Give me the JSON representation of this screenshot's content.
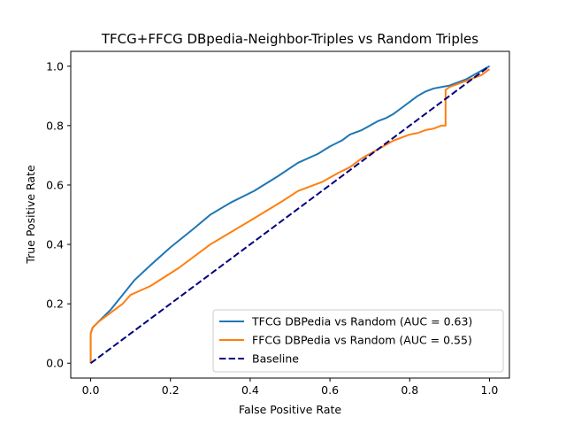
{
  "chart_data": {
    "type": "line",
    "title": "TFCG+FFCG DBpedia-Neighbor-Triples vs Random Triples",
    "xlabel": "False Positive Rate",
    "ylabel": "True Positive Rate",
    "xlim": [
      -0.05,
      1.05
    ],
    "ylim": [
      -0.05,
      1.05
    ],
    "xticks": [
      "0.0",
      "0.2",
      "0.4",
      "0.6",
      "0.8",
      "1.0"
    ],
    "yticks": [
      "0.0",
      "0.2",
      "0.4",
      "0.6",
      "0.8",
      "1.0"
    ],
    "grid": false,
    "legend_position": "lower-right",
    "series": [
      {
        "name": "TFCG DBPedia vs Random (AUC = 0.63)",
        "color": "#1f77b4",
        "style": "solid",
        "x": [
          0,
          0,
          0.005,
          0.02,
          0.05,
          0.08,
          0.11,
          0.15,
          0.2,
          0.26,
          0.3,
          0.35,
          0.41,
          0.47,
          0.52,
          0.57,
          0.6,
          0.63,
          0.65,
          0.68,
          0.7,
          0.72,
          0.74,
          0.76,
          0.78,
          0.8,
          0.82,
          0.84,
          0.86,
          0.88,
          0.9,
          0.92,
          0.94,
          0.96,
          0.98,
          1.0
        ],
        "y": [
          0,
          0.1,
          0.12,
          0.14,
          0.18,
          0.23,
          0.28,
          0.33,
          0.39,
          0.455,
          0.5,
          0.54,
          0.58,
          0.63,
          0.675,
          0.705,
          0.73,
          0.75,
          0.77,
          0.785,
          0.8,
          0.815,
          0.825,
          0.84,
          0.86,
          0.88,
          0.9,
          0.915,
          0.925,
          0.93,
          0.935,
          0.945,
          0.955,
          0.97,
          0.985,
          1.0
        ]
      },
      {
        "name": "FFCG DBPedia vs Random (AUC = 0.55)",
        "color": "#ff7f0e",
        "style": "solid",
        "x": [
          0,
          0,
          0.005,
          0.02,
          0.05,
          0.08,
          0.1,
          0.15,
          0.22,
          0.3,
          0.4,
          0.48,
          0.52,
          0.58,
          0.62,
          0.65,
          0.68,
          0.72,
          0.76,
          0.78,
          0.8,
          0.82,
          0.84,
          0.86,
          0.88,
          0.885,
          0.89,
          0.89,
          0.9,
          0.92,
          0.94,
          0.96,
          0.98,
          1.0
        ],
        "y": [
          0,
          0.1,
          0.12,
          0.14,
          0.17,
          0.2,
          0.23,
          0.26,
          0.32,
          0.4,
          0.48,
          0.545,
          0.58,
          0.61,
          0.64,
          0.66,
          0.69,
          0.72,
          0.75,
          0.76,
          0.77,
          0.775,
          0.785,
          0.79,
          0.8,
          0.8,
          0.8,
          0.92,
          0.93,
          0.94,
          0.95,
          0.96,
          0.97,
          0.99
        ]
      },
      {
        "name": "Baseline",
        "color": "#000080",
        "style": "dashed",
        "x": [
          0,
          1
        ],
        "y": [
          0,
          1
        ]
      }
    ]
  }
}
